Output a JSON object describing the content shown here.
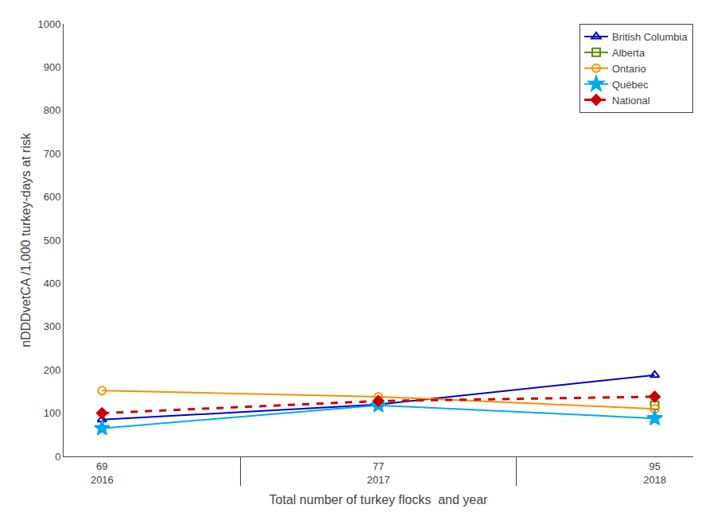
{
  "chart_data": {
    "type": "line",
    "x_label": "Total number of turkey flocks  and year",
    "y_label": "nDDDvetCA /1,000 turkey-days at risk",
    "categories": [
      [
        "69",
        "2016"
      ],
      [
        "77",
        "2017"
      ],
      [
        "95",
        "2018"
      ]
    ],
    "series": [
      {
        "name": "British Columbia",
        "color": "#0000CC",
        "marker": "triangle-up-open",
        "line_style": "solid",
        "values": [
          85,
          120,
          188
        ]
      },
      {
        "name": "Alberta",
        "color": "#5C8A00",
        "marker": "square-open",
        "line_style": "solid",
        "values": [
          null,
          null,
          118
        ]
      },
      {
        "name": "Ontario",
        "color": "#FF8C00",
        "marker": "circle-open",
        "line_style": "solid",
        "values": [
          152,
          138,
          110
        ]
      },
      {
        "name": "Québec",
        "color": "#00AAEE",
        "marker": "star",
        "line_style": "solid",
        "values": [
          65,
          118,
          88
        ]
      },
      {
        "name": "National",
        "color": "#CC0000",
        "marker": "diamond",
        "line_style": "dash",
        "values": [
          100,
          128,
          138
        ]
      }
    ],
    "ylim": [
      0,
      1000
    ],
    "yticks": [
      0,
      100,
      200,
      300,
      400,
      500,
      600,
      700,
      800,
      900,
      1000
    ],
    "grid": false,
    "legend": "upper right"
  }
}
